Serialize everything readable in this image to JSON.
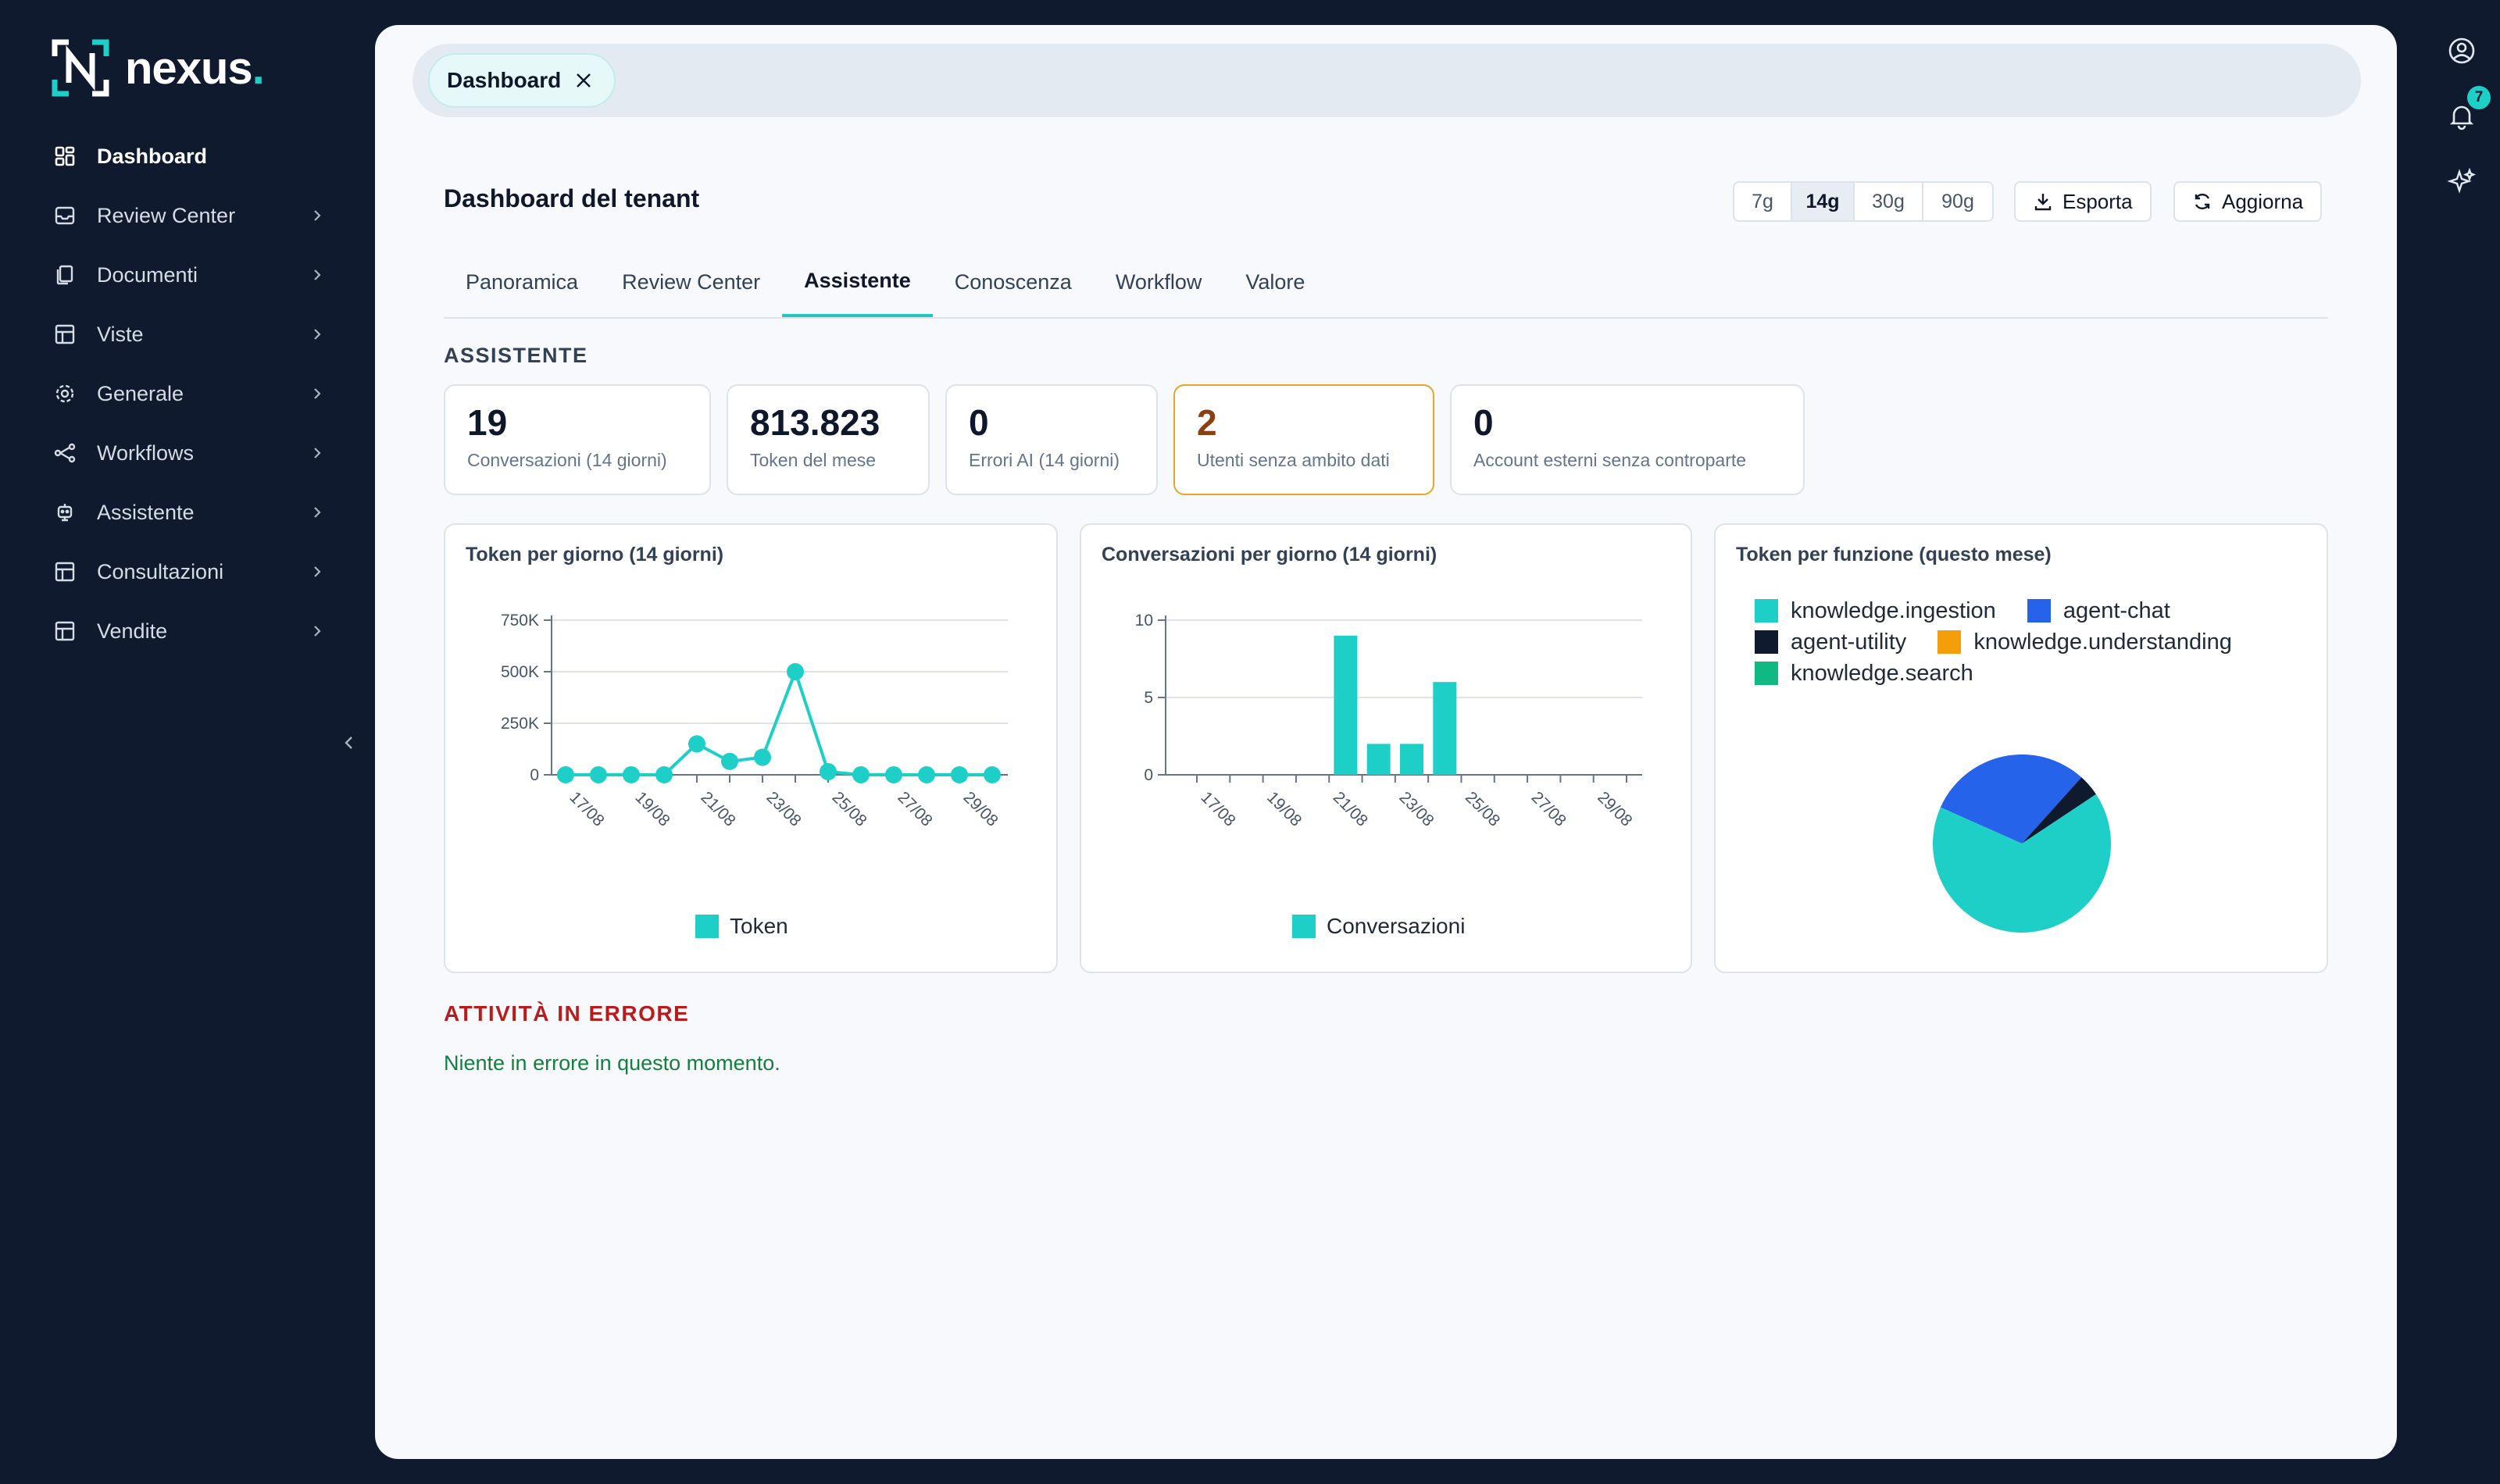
{
  "brand": {
    "name": "nexus",
    "dot": ".",
    "accent": "#1ecfc7"
  },
  "sidebar": {
    "items": [
      {
        "label": "Dashboard",
        "icon": "dashboard-icon",
        "active": true
      },
      {
        "label": "Review Center",
        "icon": "inbox-icon"
      },
      {
        "label": "Documenti",
        "icon": "documents-icon"
      },
      {
        "label": "Viste",
        "icon": "table-icon"
      },
      {
        "label": "Generale",
        "icon": "gear-icon"
      },
      {
        "label": "Workflows",
        "icon": "workflow-icon"
      },
      {
        "label": "Assistente",
        "icon": "robot-icon"
      },
      {
        "label": "Consultazioni",
        "icon": "table-icon"
      },
      {
        "label": "Vendite",
        "icon": "table-icon"
      }
    ]
  },
  "rail": {
    "notifications_count": "7"
  },
  "open_tab": {
    "label": "Dashboard"
  },
  "header": {
    "title": "Dashboard del tenant",
    "periods": [
      "7g",
      "14g",
      "30g",
      "90g"
    ],
    "active_period": "14g",
    "export_label": "Esporta",
    "refresh_label": "Aggiorna"
  },
  "tabs": [
    "Panoramica",
    "Review Center",
    "Assistente",
    "Conoscenza",
    "Workflow",
    "Valore"
  ],
  "active_tab": "Assistente",
  "section_title": "ASSISTENTE",
  "kpis": [
    {
      "value": "19",
      "label": "Conversazioni (14 giorni)"
    },
    {
      "value": "813.823",
      "label": "Token del mese"
    },
    {
      "value": "0",
      "label": "Errori AI (14 giorni)"
    },
    {
      "value": "2",
      "label": "Utenti senza ambito dati",
      "warning": true
    },
    {
      "value": "0",
      "label": "Account esterni senza controparte"
    }
  ],
  "charts": {
    "tokens": {
      "title": "Token per giorno (14 giorni)",
      "legend": "Token"
    },
    "conversations": {
      "title": "Conversazioni per giorno (14 giorni)",
      "legend": "Conversazioni"
    },
    "functions": {
      "title": "Token per funzione (questo mese)"
    }
  },
  "chart_data": [
    {
      "type": "line",
      "title": "Token per giorno (14 giorni)",
      "x": [
        "17/08",
        "18/08",
        "19/08",
        "20/08",
        "21/08",
        "22/08",
        "23/08",
        "24/08",
        "25/08",
        "26/08",
        "27/08",
        "28/08",
        "29/08",
        "30/08"
      ],
      "x_ticks": [
        "17/08",
        "19/08",
        "21/08",
        "23/08",
        "25/08",
        "27/08",
        "29/08"
      ],
      "y_ticks": [
        "0",
        "250K",
        "500K",
        "750K"
      ],
      "ylim": [
        0,
        750000
      ],
      "series": [
        {
          "name": "Token",
          "values": [
            0,
            0,
            0,
            0,
            150000,
            65000,
            85000,
            500000,
            15000,
            0,
            0,
            0,
            0,
            0
          ]
        }
      ],
      "color": "#1ecfc7",
      "grid": true,
      "legend": "bottom"
    },
    {
      "type": "bar",
      "title": "Conversazioni per giorno (14 giorni)",
      "x": [
        "17/08",
        "18/08",
        "19/08",
        "20/08",
        "21/08",
        "22/08",
        "23/08",
        "24/08",
        "25/08",
        "26/08",
        "27/08",
        "28/08",
        "29/08",
        "30/08"
      ],
      "x_ticks": [
        "17/08",
        "19/08",
        "21/08",
        "23/08",
        "25/08",
        "27/08",
        "29/08"
      ],
      "y_ticks": [
        "0",
        "5",
        "10"
      ],
      "ylim": [
        0,
        10
      ],
      "series": [
        {
          "name": "Conversazioni",
          "values": [
            0,
            0,
            0,
            0,
            9,
            2,
            2,
            6,
            0,
            0,
            0,
            0,
            0,
            0
          ]
        }
      ],
      "color": "#1ecfc7",
      "grid": true,
      "legend": "bottom"
    },
    {
      "type": "pie",
      "title": "Token per funzione (questo mese)",
      "categories": [
        "knowledge.ingestion",
        "agent-chat",
        "agent-utility",
        "knowledge.understanding",
        "knowledge.search"
      ],
      "values": [
        66,
        30,
        4,
        0,
        0
      ],
      "colors": [
        "#1ecfc7",
        "#2563eb",
        "#0f1a2e",
        "#f59e0b",
        "#10b981"
      ],
      "legend": "top"
    }
  ],
  "errors": {
    "title": "ATTIVITÀ IN ERRORE",
    "message": "Niente in errore in questo momento."
  }
}
